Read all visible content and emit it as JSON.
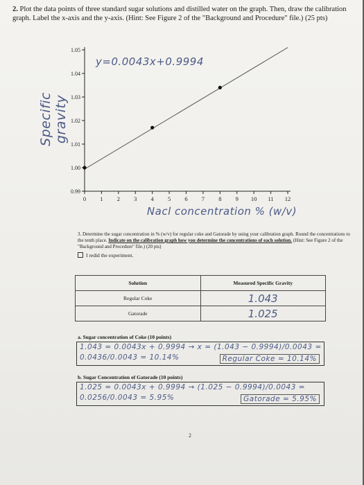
{
  "question2": {
    "number": "2.",
    "text": "Plot the data points of three standard sugar solutions and distilled water on the graph. Then, draw the calibration graph. Label the x-axis and the y-axis. (Hint: See Figure 2 of the \"Background and Procedure\" file.) (25 pts)"
  },
  "handwriting": {
    "y_axis_label": "Specific gravity",
    "x_axis_label": "Nacl concentration % (w/v)",
    "equation": "y=0.0043x+0.9994"
  },
  "chart_data": {
    "type": "scatter",
    "x_ticks": [
      "0",
      "1",
      "2",
      "3",
      "4",
      "5",
      "6",
      "7",
      "8",
      "9",
      "10",
      "11",
      "12"
    ],
    "y_ticks": [
      "0.99",
      "1.00",
      "1.01",
      "1.02",
      "1.03",
      "1.04",
      "1.05"
    ],
    "xlim": [
      0,
      12
    ],
    "ylim": [
      0.99,
      1.05
    ],
    "grid": false,
    "points": [
      {
        "x": 0,
        "y": 1.0
      },
      {
        "x": 4,
        "y": 1.017
      },
      {
        "x": 8,
        "y": 1.034
      }
    ],
    "fit_line": {
      "slope": 0.0043,
      "intercept": 0.9994,
      "x_range": [
        0,
        12
      ]
    }
  },
  "question3": {
    "number": "3.",
    "text_plain": "Determine the sugar concentration in % (w/v) for regular coke and Gatorade by using your calibration graph. Round the concentrations to the tenth place.",
    "text_underlined": "Indicate on the calibration graph how you determine the concentrations of each solution.",
    "text_hint": "(Hint: See Figure 2 of the \"Background and Procedure\" file.) (20 pts)",
    "redid_label": "I redid the experiment."
  },
  "table": {
    "header_solution": "Solution",
    "header_gravity": "Measured Specific Gravity",
    "rows": [
      {
        "solution": "Regular Coke",
        "gravity": "1.043"
      },
      {
        "solution": "Gatorade",
        "gravity": "1.025"
      }
    ]
  },
  "part_a": {
    "label": "a. Sugar concentration of Coke (10 points)",
    "line1": "1.043 = 0.0043x + 0.9994 → x = (1.043 − 0.9994)/0.0043 =",
    "line2": "0.0436/0.0043 = 10.14%",
    "final": "Regular Coke = 10.14%"
  },
  "part_b": {
    "label": "b. Sugar Concentration of Gatorade (10 points)",
    "line1": "1.025 = 0.0043x + 0.9994 → (1.025 − 0.9994)/0.0043 =",
    "line2": "0.0256/0.0043 = 5.95%",
    "final": "Gatorade = 5.95%"
  },
  "page_number": "2"
}
